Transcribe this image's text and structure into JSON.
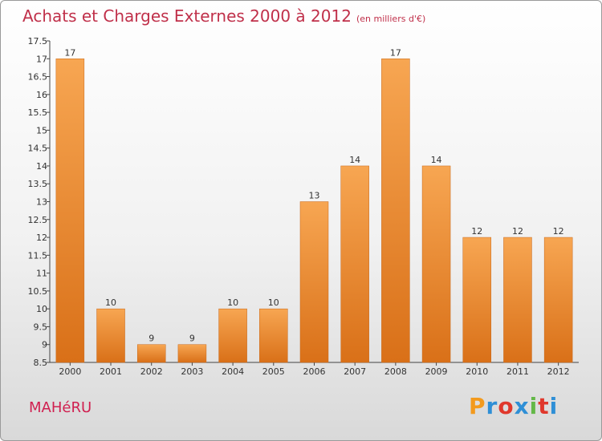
{
  "header": {
    "title": "Achats et Charges Externes 2000 à 2012",
    "subtitle": "(en milliers d'€)"
  },
  "footer": {
    "commune": "MAHéRU",
    "brand": "Proxiti"
  },
  "colors": {
    "title": "#c0304a",
    "bar_top": "#f7a652",
    "bar_bottom": "#d97018",
    "brand_letters": [
      "#f39a1d",
      "#2f8fd6",
      "#e0382c",
      "#2f8fd6",
      "#64b848",
      "#e0382c",
      "#2f8fd6"
    ]
  },
  "chart_data": {
    "type": "bar",
    "title": "Achats et Charges Externes 2000 à 2012",
    "subtitle": "(en milliers d'€)",
    "categories": [
      "2000",
      "2001",
      "2002",
      "2003",
      "2004",
      "2005",
      "2006",
      "2007",
      "2008",
      "2009",
      "2010",
      "2011",
      "2012"
    ],
    "values": [
      17,
      10,
      9,
      9,
      10,
      10,
      13,
      14,
      17,
      14,
      12,
      12,
      12
    ],
    "data_labels": [
      "17",
      "10",
      "9",
      "9",
      "10",
      "10",
      "13",
      "14",
      "17",
      "14",
      "12",
      "12",
      "12"
    ],
    "xlabel": "",
    "ylabel": "",
    "ylim": [
      8.5,
      17.5
    ],
    "yticks": [
      8.5,
      9,
      9.5,
      10,
      10.5,
      11,
      11.5,
      12,
      12.5,
      13,
      13.5,
      14,
      14.5,
      15,
      15.5,
      16,
      16.5,
      17,
      17.5
    ],
    "ytick_labels": [
      "8.5",
      "9",
      "9.5",
      "10",
      "10.5",
      "11",
      "11.5",
      "12",
      "12.5",
      "13",
      "13.5",
      "14",
      "14.5",
      "15",
      "15.5",
      "16",
      "16.5",
      "17",
      "17.5"
    ],
    "grid": false,
    "legend": "none"
  }
}
